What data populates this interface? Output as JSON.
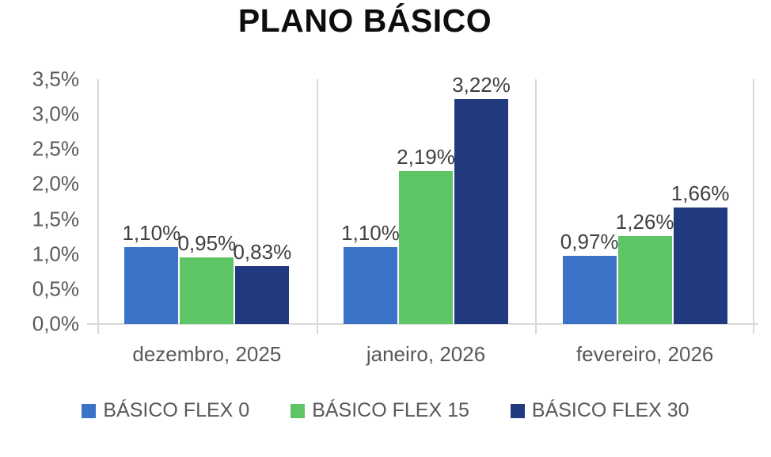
{
  "title": "PLANO BÁSICO",
  "chart_data": {
    "type": "bar",
    "title": "PLANO BÁSICO",
    "categories": [
      "dezembro, 2025",
      "janeiro, 2026",
      "fevereiro, 2026"
    ],
    "series": [
      {
        "name": "BÁSICO FLEX 0",
        "color": "#3B73C8",
        "values": [
          1.1,
          1.1,
          0.97
        ],
        "labels": [
          "1,10%",
          "1,10%",
          "0,97%"
        ]
      },
      {
        "name": "BÁSICO FLEX 15",
        "color": "#5EC566",
        "values": [
          0.95,
          2.19,
          1.26
        ],
        "labels": [
          "0,95%",
          "2,19%",
          "1,26%"
        ]
      },
      {
        "name": "BÁSICO FLEX 30",
        "color": "#21397E",
        "values": [
          0.83,
          3.22,
          1.66
        ],
        "labels": [
          "0,83%",
          "3,22%",
          "1,66%"
        ]
      }
    ],
    "y_axis": {
      "min": 0,
      "max": 3.5,
      "step": 0.5,
      "ticks": [
        "3,5%",
        "3,0%",
        "2,5%",
        "2,0%",
        "1,5%",
        "1,0%",
        "0,5%",
        "0,0%"
      ]
    },
    "xlabel": "",
    "ylabel": "",
    "legend_position": "bottom",
    "grid": "vertical category separators only",
    "colors": {
      "axis_line": "#D9D9D9",
      "axis_text": "#595959",
      "data_label_text": "#404040",
      "title_text": "#0D0D0D",
      "background": "#FFFFFF"
    }
  }
}
